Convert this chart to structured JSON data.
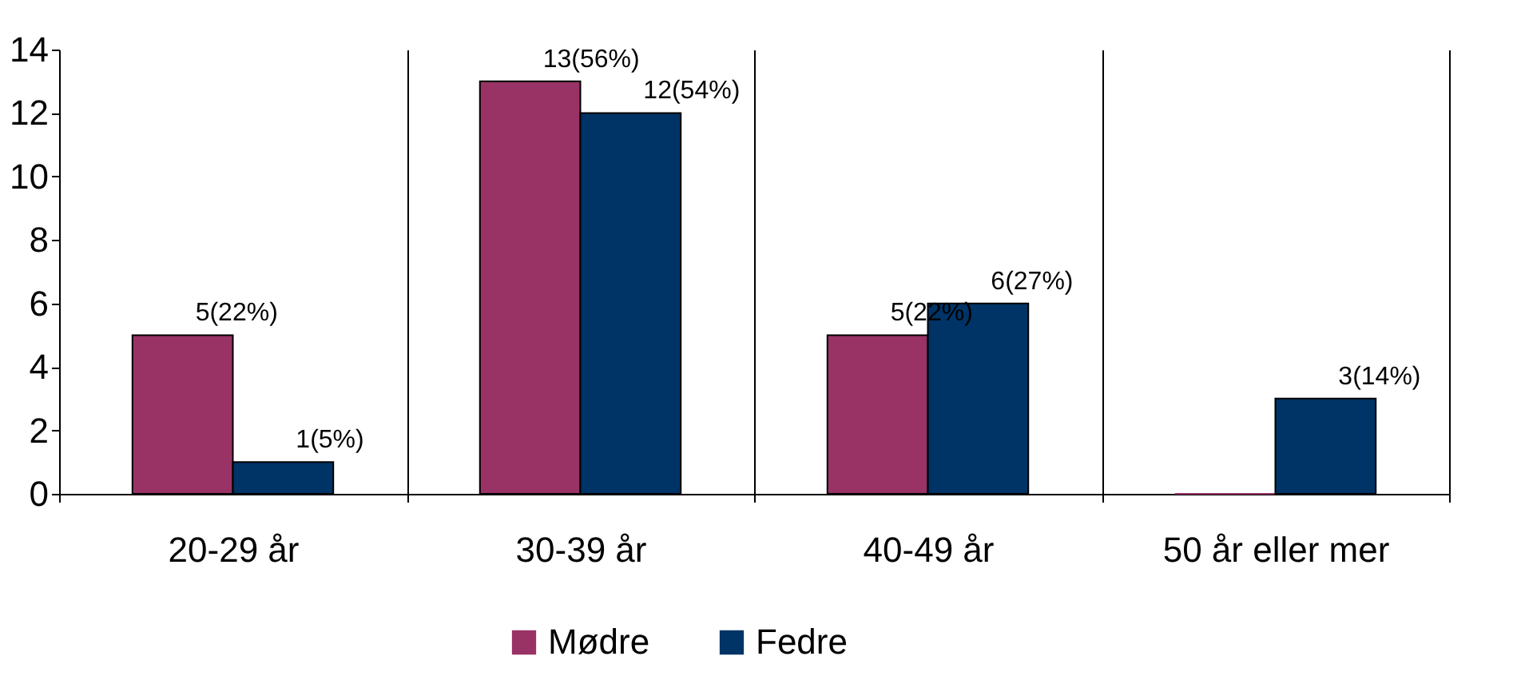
{
  "chart_data": {
    "type": "bar",
    "categories": [
      "20-29 år",
      "30-39 år",
      "40-49 år",
      "50 år eller mer"
    ],
    "series": [
      {
        "name": "Mødre",
        "color": "#993366",
        "values": [
          5,
          13,
          5,
          0
        ],
        "value_labels": [
          "5(22%)",
          "13(56%)",
          "5(22%)",
          null
        ]
      },
      {
        "name": "Fedre",
        "color": "#003366",
        "values": [
          1,
          12,
          6,
          3
        ],
        "value_labels": [
          "1(5%)",
          "12(54%)",
          "6(27%)",
          "3(14%)"
        ]
      }
    ],
    "ylim": [
      0,
      14
    ],
    "yticks": [
      0,
      2,
      4,
      6,
      8,
      10,
      12,
      14
    ],
    "grid": "x",
    "legend": "bottom"
  }
}
